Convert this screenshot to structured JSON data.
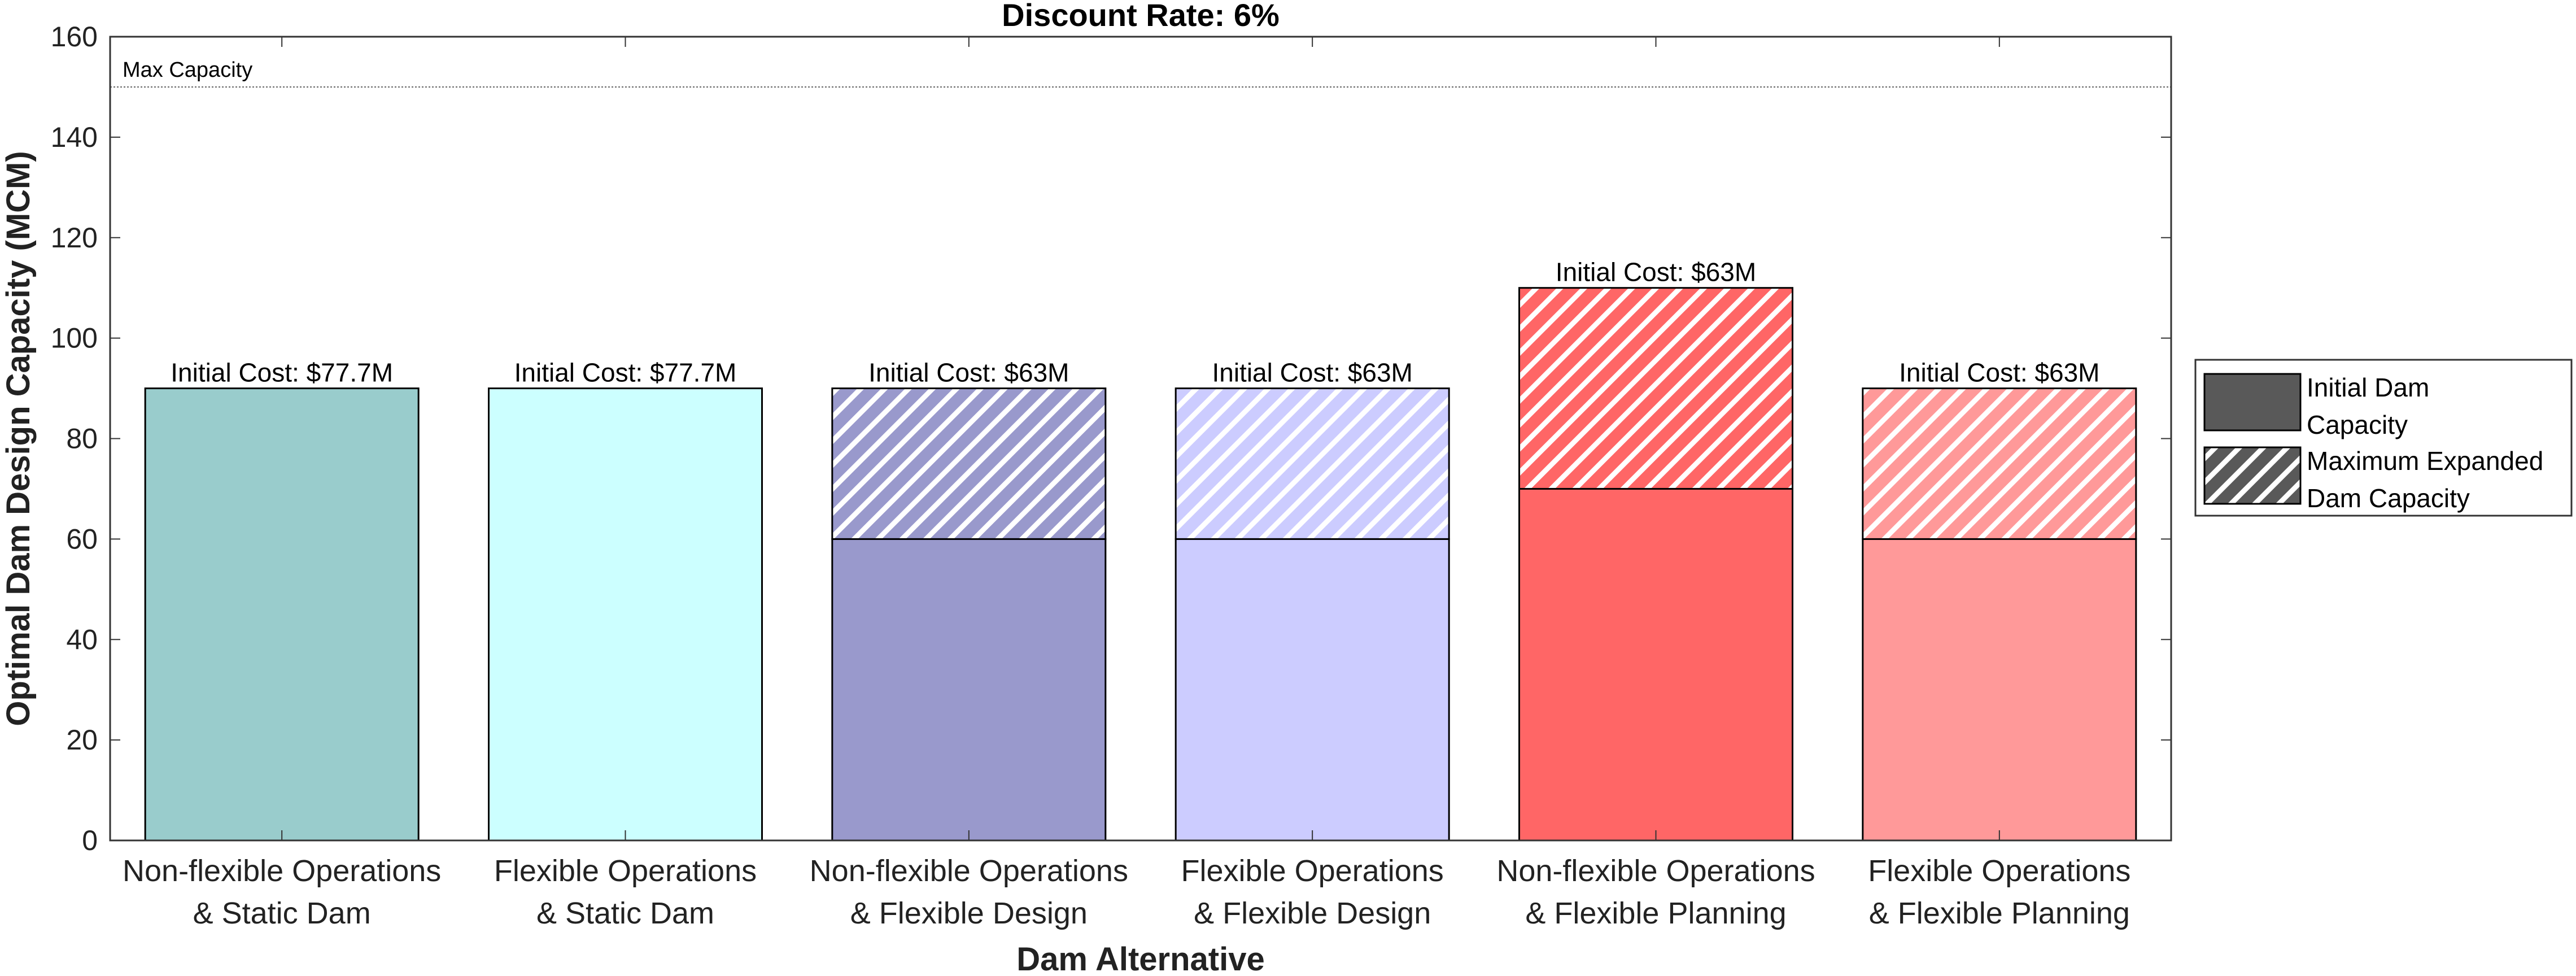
{
  "chart_data": {
    "type": "bar",
    "stacked": true,
    "title": "Discount Rate: 6%",
    "xlabel": "Dam Alternative",
    "ylabel": "Optimal Dam Design Capacity (MCM)",
    "ylim": [
      0,
      160
    ],
    "yticks": [
      0,
      20,
      40,
      60,
      80,
      100,
      120,
      140,
      160
    ],
    "grid": false,
    "categories": [
      [
        "Non-flexible Operations",
        "& Static Dam"
      ],
      [
        "Flexible Operations",
        "& Static Dam"
      ],
      [
        "Non-flexible Operations",
        "& Flexible Design"
      ],
      [
        "Flexible Operations",
        "& Flexible Design"
      ],
      [
        "Non-flexible Operations",
        "& Flexible Planning"
      ],
      [
        "Flexible Operations",
        "& Flexible Planning"
      ]
    ],
    "series": [
      {
        "name": "Initial Dam Capacity",
        "values": [
          90,
          90,
          60,
          60,
          70,
          60
        ]
      },
      {
        "name": "Maximum Expanded Dam Capacity",
        "values": [
          0,
          0,
          30,
          30,
          40,
          30
        ]
      }
    ],
    "colors": [
      "#99cccc",
      "#ccffff",
      "#9999cc",
      "#ccccff",
      "#ff6666",
      "#ff9999"
    ],
    "data_labels": [
      "Initial Cost: $77.7M",
      "Initial Cost: $77.7M",
      "Initial Cost: $63M",
      "Initial Cost: $63M",
      "Initial Cost: $63M",
      "Initial Cost: $63M"
    ],
    "reference_line": {
      "y": 150,
      "label": "Max Capacity"
    },
    "legend": {
      "position": "right",
      "entries": [
        {
          "lines": [
            "Initial Dam",
            "Capacity"
          ],
          "pattern": "solid",
          "color": "#595959"
        },
        {
          "lines": [
            "Maximum Expanded",
            "Dam Capacity"
          ],
          "pattern": "hatched",
          "color": "#595959"
        }
      ]
    }
  }
}
